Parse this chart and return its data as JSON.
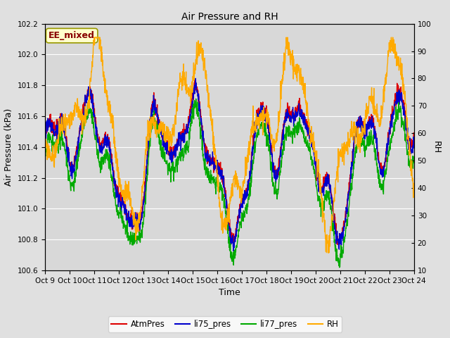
{
  "title": "Air Pressure and RH",
  "xlabel": "Time",
  "ylabel_left": "Air Pressure (kPa)",
  "ylabel_right": "RH",
  "annotation": "EE_mixed",
  "ylim_left": [
    100.6,
    102.2
  ],
  "ylim_right": [
    10,
    100
  ],
  "yticks_left": [
    100.6,
    100.8,
    101.0,
    101.2,
    101.4,
    101.6,
    101.8,
    102.0,
    102.2
  ],
  "yticks_right": [
    10,
    20,
    30,
    40,
    50,
    60,
    70,
    80,
    90,
    100
  ],
  "xtick_labels": [
    "Oct 9",
    "Oct 10",
    "Oct 11",
    "Oct 12",
    "Oct 13",
    "Oct 14",
    "Oct 15",
    "Oct 16",
    "Oct 17",
    "Oct 18",
    "Oct 19",
    "Oct 20",
    "Oct 21",
    "Oct 22",
    "Oct 23",
    "Oct 24"
  ],
  "colors": {
    "AtmPres": "#dd0000",
    "li75_pres": "#0000cc",
    "li77_pres": "#00aa00",
    "RH": "#ffaa00"
  },
  "bg_color": "#e0e0e0",
  "plot_bg_color": "#d8d8d8",
  "grid_color": "#ffffff",
  "annotation_bg": "#ffffcc",
  "annotation_border": "#999900",
  "annotation_text_color": "#880000",
  "linewidth": 1.0,
  "figsize": [
    6.4,
    4.8
  ],
  "dpi": 100
}
